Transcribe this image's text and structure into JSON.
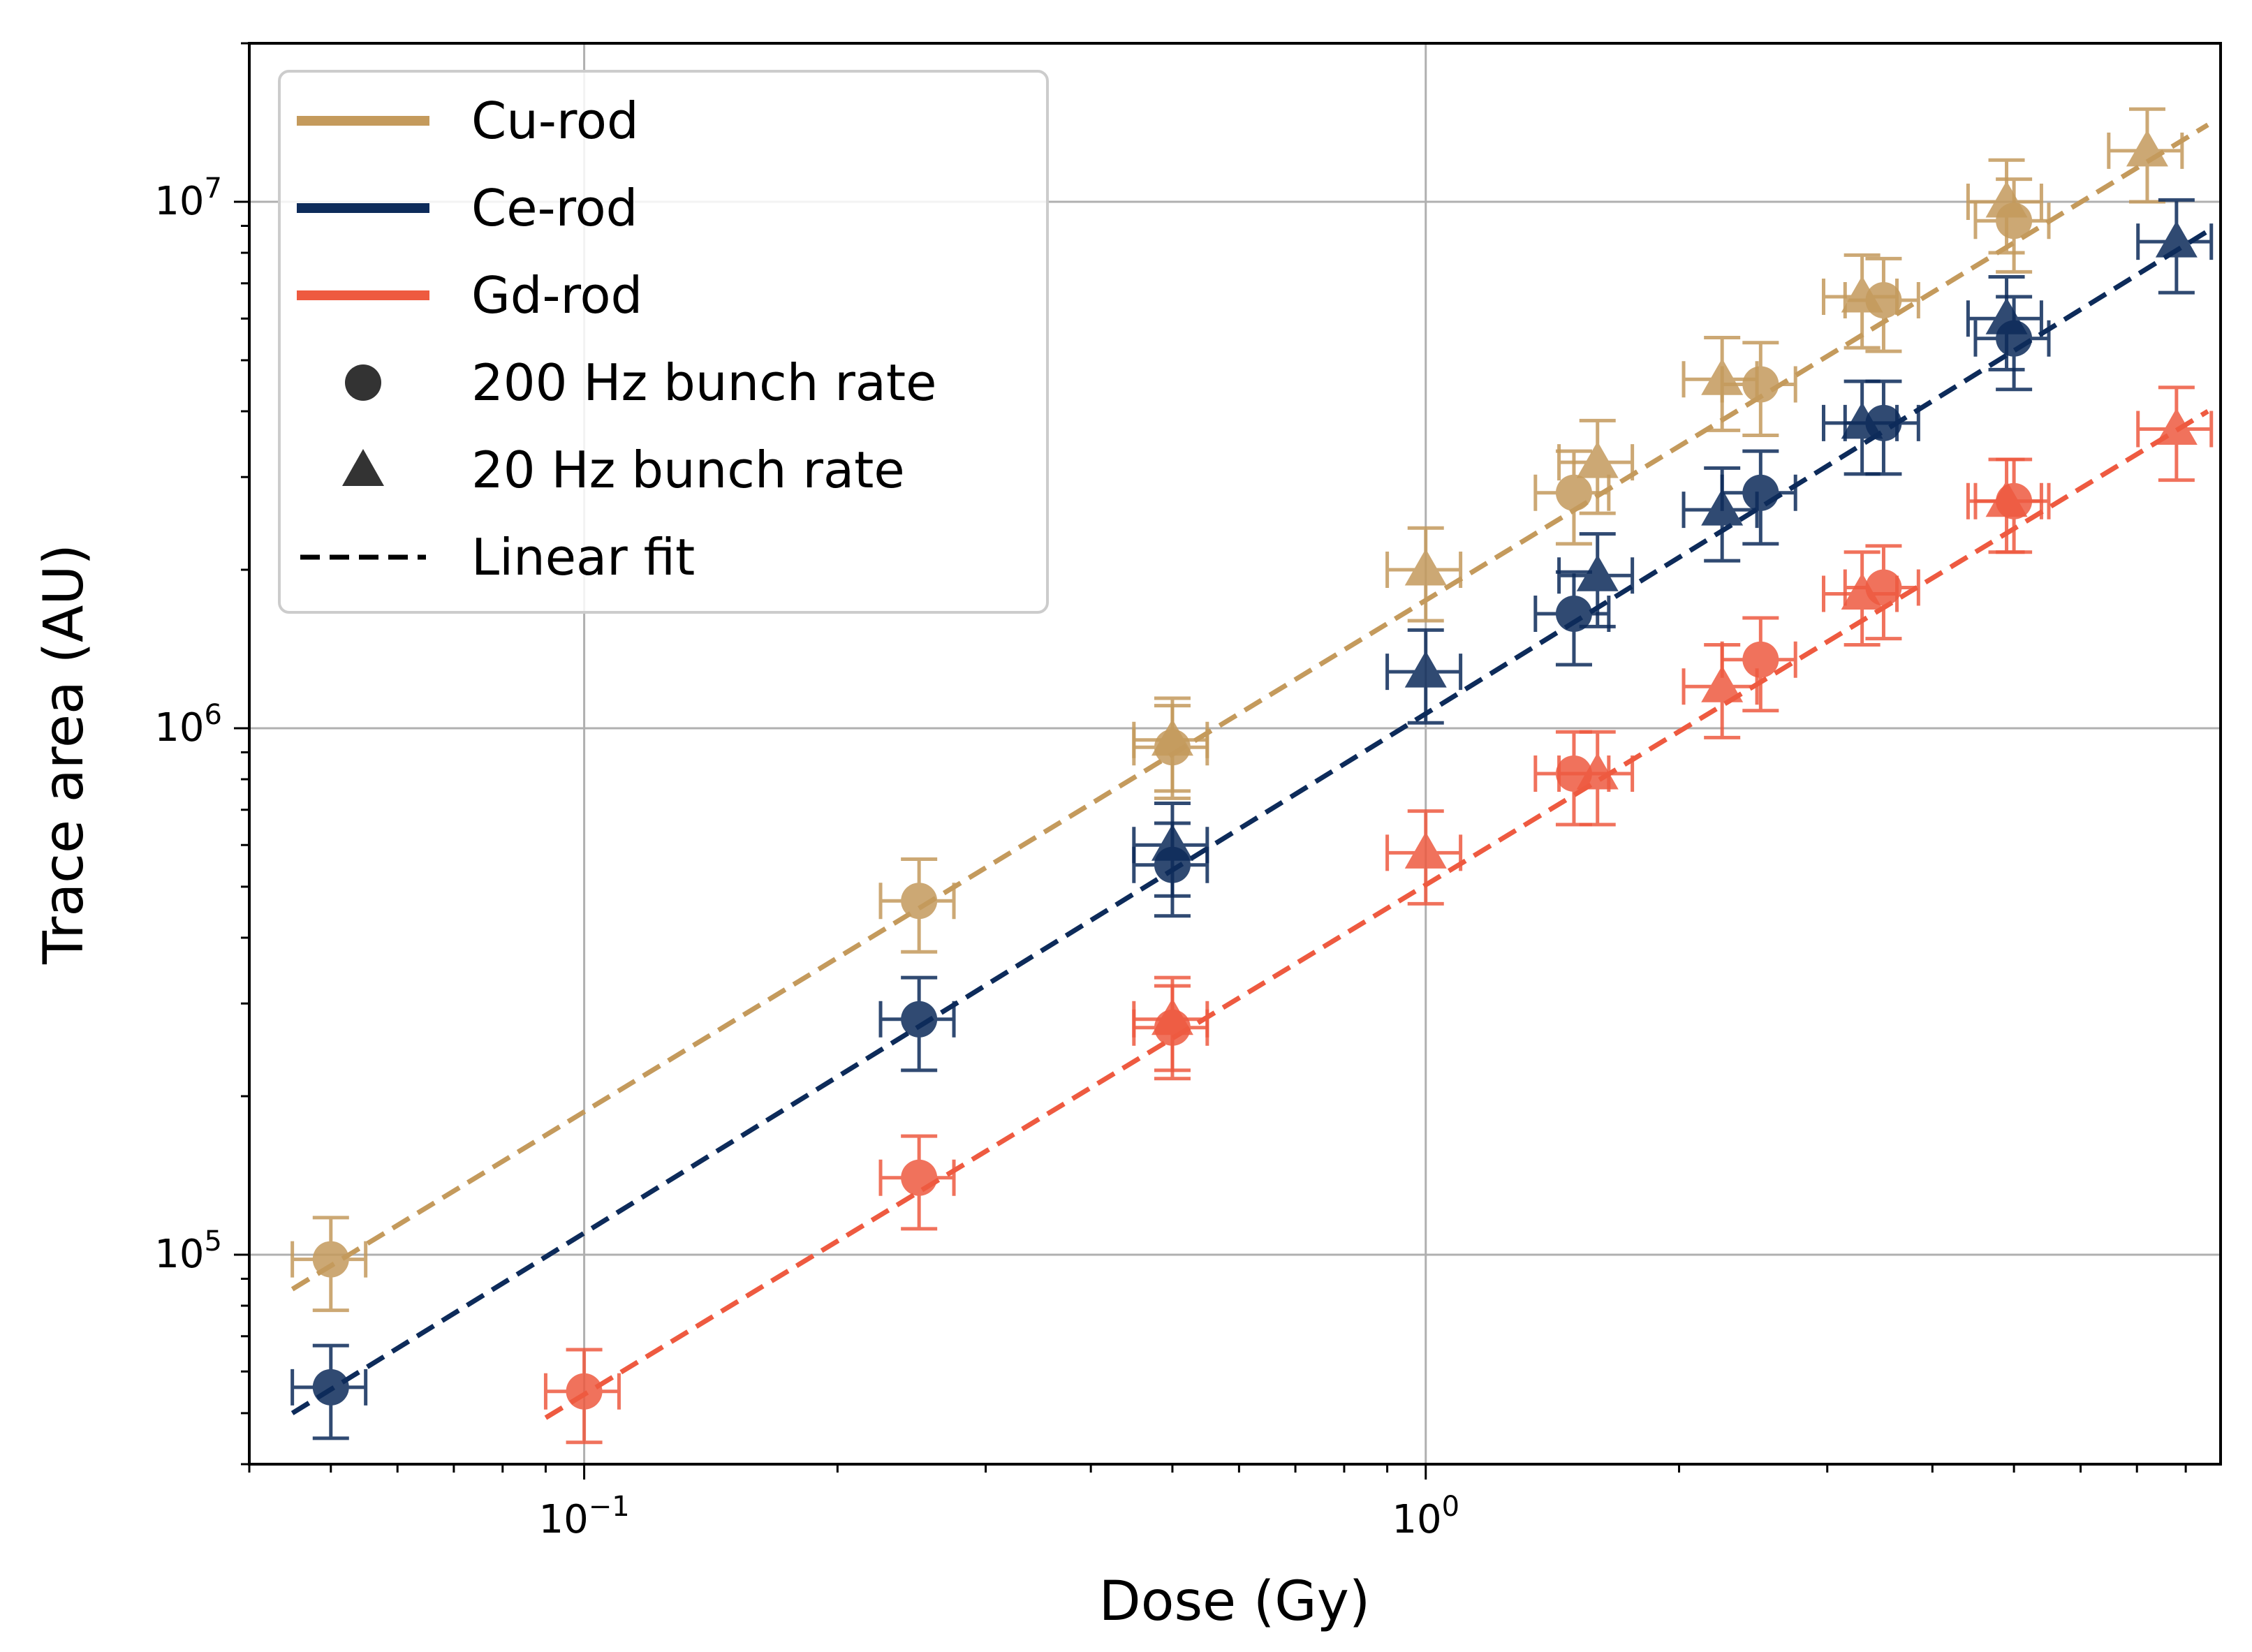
{
  "chart_data": {
    "type": "scatter",
    "xscale": "log",
    "yscale": "log",
    "xlabel": "Dose (Gy)",
    "ylabel": "Trace area (AU)",
    "xlim": [
      0.04,
      8.8
    ],
    "ylim": [
      40000,
      20000000
    ],
    "grid": true,
    "legend_position": "top-left",
    "x_tick_labels": [
      {
        "value": 0.1,
        "base": "10",
        "exp": "−1"
      },
      {
        "value": 1,
        "base": "10",
        "exp": "0"
      }
    ],
    "y_tick_labels": [
      {
        "value": 100000,
        "base": "10",
        "exp": "5"
      },
      {
        "value": 1000000,
        "base": "10",
        "exp": "6"
      },
      {
        "value": 10000000,
        "base": "10",
        "exp": "7"
      }
    ],
    "legend": [
      {
        "label": "Cu-rod",
        "kind": "line",
        "color": "#c49a5c"
      },
      {
        "label": "Ce-rod",
        "kind": "line",
        "color": "#0d2b5a"
      },
      {
        "label": "Gd-rod",
        "kind": "line",
        "color": "#ee5a40"
      },
      {
        "label": "200 Hz bunch rate",
        "kind": "circle",
        "color": "#333333"
      },
      {
        "label": "20 Hz bunch rate",
        "kind": "triangle",
        "color": "#333333"
      },
      {
        "label": "Linear fit",
        "kind": "dashed",
        "color": "#000000"
      }
    ],
    "series": [
      {
        "name": "Cu-rod",
        "color": "#c49a5c",
        "marker_alpha": 0.85,
        "fit": {
          "x": [
            0.045,
            8.5
          ],
          "y": [
            86000,
            14000000
          ]
        },
        "points_200Hz": [
          [
            0.05,
            98000
          ],
          [
            0.25,
            470000
          ],
          [
            0.5,
            920000
          ],
          [
            1.5,
            2800000
          ],
          [
            2.5,
            4500000
          ],
          [
            3.5,
            6500000
          ],
          [
            5.0,
            9200000
          ]
        ],
        "points_20Hz": [
          [
            0.5,
            950000
          ],
          [
            1.0,
            2000000
          ],
          [
            1.6,
            3200000
          ],
          [
            2.25,
            4600000
          ],
          [
            3.3,
            6600000
          ],
          [
            4.9,
            10000000
          ],
          [
            7.2,
            12500000
          ]
        ]
      },
      {
        "name": "Ce-rod",
        "color": "#0d2b5a",
        "marker_alpha": 0.85,
        "fit": {
          "x": [
            0.045,
            8.5
          ],
          "y": [
            50000,
            8800000
          ]
        },
        "points_200Hz": [
          [
            0.05,
            56000
          ],
          [
            0.25,
            280000
          ],
          [
            0.5,
            550000
          ],
          [
            1.5,
            1650000
          ],
          [
            2.5,
            2800000
          ],
          [
            3.5,
            3800000
          ],
          [
            5.0,
            5500000
          ]
        ],
        "points_20Hz": [
          [
            0.5,
            600000
          ],
          [
            1.0,
            1280000
          ],
          [
            1.6,
            1950000
          ],
          [
            2.25,
            2600000
          ],
          [
            3.3,
            3800000
          ],
          [
            4.9,
            6000000
          ],
          [
            7.8,
            8400000
          ]
        ]
      },
      {
        "name": "Gd-rod",
        "color": "#ee5a40",
        "marker_alpha": 0.85,
        "fit": {
          "x": [
            0.09,
            8.5
          ],
          "y": [
            49000,
            4000000
          ]
        },
        "points_200Hz": [
          [
            0.1,
            55000
          ],
          [
            0.25,
            140000
          ],
          [
            0.5,
            270000
          ],
          [
            1.5,
            820000
          ],
          [
            2.5,
            1350000
          ],
          [
            3.5,
            1850000
          ],
          [
            5.0,
            2700000
          ]
        ],
        "points_20Hz": [
          [
            0.5,
            280000
          ],
          [
            1.0,
            580000
          ],
          [
            1.6,
            820000
          ],
          [
            2.25,
            1200000
          ],
          [
            3.3,
            1800000
          ],
          [
            4.9,
            2700000
          ],
          [
            7.8,
            3700000
          ]
        ]
      }
    ],
    "error_fraction": {
      "x": 0.1,
      "y": 0.2
    }
  }
}
